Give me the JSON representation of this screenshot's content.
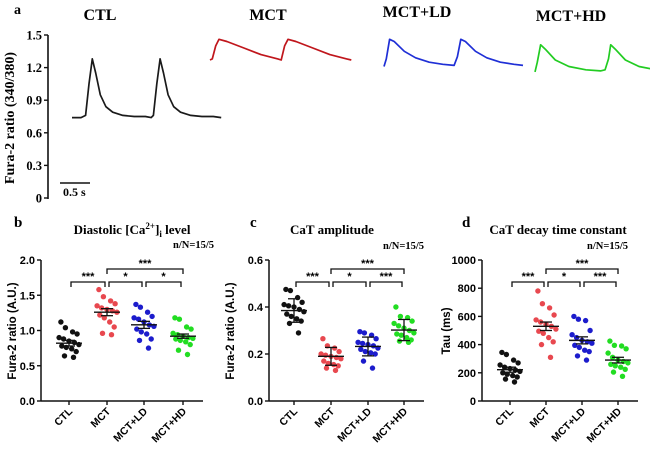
{
  "chart_data": [
    {
      "panel": "a",
      "type": "line",
      "title": "",
      "ylabel": "Fura-2 ratio (340/380)",
      "yticks": [
        "0",
        "0.3",
        "0.6",
        "0.9",
        "1.2",
        "1.5"
      ],
      "ylim": [
        0,
        1.5
      ],
      "scale_bar": {
        "label": "0.5 s",
        "seconds": 0.5
      },
      "series": [
        {
          "name": "CTL",
          "color": "#1a1a1a",
          "points": [
            [
              0,
              0.74
            ],
            [
              0.08,
              0.74
            ],
            [
              0.12,
              0.76
            ],
            [
              0.15,
              1.05
            ],
            [
              0.18,
              1.28
            ],
            [
              0.21,
              1.15
            ],
            [
              0.25,
              0.95
            ],
            [
              0.3,
              0.84
            ],
            [
              0.36,
              0.79
            ],
            [
              0.45,
              0.76
            ],
            [
              0.55,
              0.75
            ],
            [
              0.65,
              0.75
            ],
            [
              0.7,
              0.74
            ],
            [
              0.72,
              0.76
            ],
            [
              0.75,
              1.05
            ],
            [
              0.78,
              1.28
            ],
            [
              0.81,
              1.15
            ],
            [
              0.85,
              0.95
            ],
            [
              0.9,
              0.84
            ],
            [
              0.96,
              0.79
            ],
            [
              1.05,
              0.76
            ],
            [
              1.15,
              0.75
            ],
            [
              1.25,
              0.75
            ],
            [
              1.32,
              0.74
            ]
          ]
        },
        {
          "name": "MCT",
          "color": "#c0161c",
          "points": [
            [
              0,
              1.27
            ],
            [
              0.02,
              1.28
            ],
            [
              0.05,
              1.4
            ],
            [
              0.08,
              1.46
            ],
            [
              0.15,
              1.44
            ],
            [
              0.3,
              1.38
            ],
            [
              0.45,
              1.32
            ],
            [
              0.6,
              1.28
            ],
            [
              0.63,
              1.27
            ],
            [
              0.66,
              1.4
            ],
            [
              0.69,
              1.46
            ],
            [
              0.76,
              1.44
            ],
            [
              0.91,
              1.38
            ],
            [
              1.06,
              1.32
            ],
            [
              1.21,
              1.28
            ],
            [
              1.25,
              1.27
            ]
          ]
        },
        {
          "name": "MCT+LD",
          "color": "#1f2fd6",
          "points": [
            [
              0,
              1.21
            ],
            [
              0.02,
              1.28
            ],
            [
              0.05,
              1.46
            ],
            [
              0.09,
              1.44
            ],
            [
              0.18,
              1.35
            ],
            [
              0.28,
              1.29
            ],
            [
              0.4,
              1.25
            ],
            [
              0.52,
              1.23
            ],
            [
              0.62,
              1.22
            ],
            [
              0.65,
              1.3
            ],
            [
              0.68,
              1.46
            ],
            [
              0.72,
              1.44
            ],
            [
              0.81,
              1.35
            ],
            [
              0.91,
              1.29
            ],
            [
              1.03,
              1.25
            ],
            [
              1.15,
              1.23
            ],
            [
              1.23,
              1.22
            ]
          ]
        },
        {
          "name": "MCT+HD",
          "color": "#22cc22",
          "points": [
            [
              0,
              1.16
            ],
            [
              0.02,
              1.25
            ],
            [
              0.05,
              1.41
            ],
            [
              0.09,
              1.37
            ],
            [
              0.18,
              1.27
            ],
            [
              0.3,
              1.21
            ],
            [
              0.45,
              1.18
            ],
            [
              0.58,
              1.17
            ],
            [
              0.62,
              1.18
            ],
            [
              0.65,
              1.28
            ],
            [
              0.67,
              1.41
            ],
            [
              0.71,
              1.37
            ],
            [
              0.8,
              1.27
            ],
            [
              0.92,
              1.21
            ],
            [
              1.07,
              1.18
            ],
            [
              1.2,
              1.17
            ],
            [
              1.26,
              1.18
            ]
          ]
        }
      ]
    },
    {
      "panel": "b",
      "type": "scatter",
      "title": "Diastolic [Ca2+]i level",
      "title_main": "Diastolic [Ca",
      "title_sup": "2+",
      "title_mid": "]",
      "title_sub": "i",
      "title_end": " level",
      "n_label": "n/N=15/5",
      "ylabel": "Fura-2 ratio (A.U.)",
      "ylim": [
        0,
        2.0
      ],
      "yticks": [
        "0.0",
        "0.5",
        "1.0",
        "1.5",
        "2.0"
      ],
      "categories": [
        "CTL",
        "MCT",
        "MCT+LD",
        "MCT+HD"
      ],
      "error_type": "sem",
      "series": [
        {
          "name": "CTL",
          "color": "#111111",
          "mean": 0.82,
          "err": 0.04,
          "values": [
            1.12,
            1.04,
            0.98,
            0.95,
            0.9,
            0.88,
            0.85,
            0.83,
            0.8,
            0.78,
            0.76,
            0.74,
            0.7,
            0.64,
            0.62
          ]
        },
        {
          "name": "MCT",
          "color": "#e8484f",
          "mean": 1.26,
          "err": 0.05,
          "values": [
            1.58,
            1.48,
            1.42,
            1.38,
            1.35,
            1.32,
            1.3,
            1.28,
            1.26,
            1.22,
            1.18,
            1.12,
            1.05,
            0.96,
            0.94
          ]
        },
        {
          "name": "MCT+LD",
          "color": "#1c1ccc",
          "mean": 1.08,
          "err": 0.05,
          "values": [
            1.37,
            1.33,
            1.26,
            1.2,
            1.18,
            1.16,
            1.12,
            1.08,
            1.06,
            1.02,
            0.98,
            0.95,
            0.88,
            0.86,
            0.75
          ]
        },
        {
          "name": "MCT+HD",
          "color": "#22dd22",
          "mean": 0.92,
          "err": 0.03,
          "values": [
            1.18,
            1.16,
            1.05,
            1.02,
            0.96,
            0.94,
            0.92,
            0.9,
            0.89,
            0.88,
            0.86,
            0.84,
            0.8,
            0.72,
            0.66
          ]
        }
      ],
      "significance": [
        {
          "from": "CTL",
          "to": "MCT",
          "label": "***",
          "level": 1
        },
        {
          "from": "MCT",
          "to": "MCT+LD",
          "label": "*",
          "level": 1
        },
        {
          "from": "MCT+LD",
          "to": "MCT+HD",
          "label": "*",
          "level": 1
        },
        {
          "from": "MCT",
          "to": "MCT+HD",
          "label": "***",
          "level": 2
        }
      ]
    },
    {
      "panel": "c",
      "type": "scatter",
      "title": "CaT amplitude",
      "n_label": "n/N=15/5",
      "ylabel": "Fura-2 ratio (A.U.)",
      "ylim": [
        0,
        0.6
      ],
      "yticks": [
        "0.0",
        "0.2",
        "0.4",
        "0.6"
      ],
      "categories": [
        "CTL",
        "MCT",
        "MCT+LD",
        "MCT+HD"
      ],
      "error_type": "sd",
      "series": [
        {
          "name": "CTL",
          "color": "#111111",
          "mean": 0.385,
          "err": 0.05,
          "values": [
            0.475,
            0.47,
            0.44,
            0.42,
            0.41,
            0.405,
            0.4,
            0.39,
            0.38,
            0.37,
            0.36,
            0.35,
            0.34,
            0.33,
            0.29
          ]
        },
        {
          "name": "MCT",
          "color": "#e8484f",
          "mean": 0.19,
          "err": 0.038,
          "values": [
            0.265,
            0.235,
            0.225,
            0.21,
            0.2,
            0.195,
            0.19,
            0.185,
            0.18,
            0.17,
            0.16,
            0.155,
            0.15,
            0.14,
            0.13
          ]
        },
        {
          "name": "MCT+LD",
          "color": "#1c1ccc",
          "mean": 0.232,
          "err": 0.04,
          "values": [
            0.295,
            0.29,
            0.28,
            0.265,
            0.25,
            0.245,
            0.24,
            0.235,
            0.225,
            0.22,
            0.21,
            0.205,
            0.2,
            0.17,
            0.14
          ]
        },
        {
          "name": "MCT+HD",
          "color": "#22dd22",
          "mean": 0.302,
          "err": 0.045,
          "values": [
            0.4,
            0.36,
            0.355,
            0.34,
            0.33,
            0.32,
            0.31,
            0.3,
            0.29,
            0.285,
            0.28,
            0.27,
            0.26,
            0.255,
            0.25
          ]
        }
      ],
      "significance": [
        {
          "from": "CTL",
          "to": "MCT",
          "label": "***",
          "level": 1
        },
        {
          "from": "MCT",
          "to": "MCT+LD",
          "label": "*",
          "level": 1
        },
        {
          "from": "MCT+LD",
          "to": "MCT+HD",
          "label": "***",
          "level": 1
        },
        {
          "from": "MCT",
          "to": "MCT+HD",
          "label": "***",
          "level": 2
        }
      ]
    },
    {
      "panel": "d",
      "type": "scatter",
      "title": "CaT decay time constant",
      "n_label": "n/N=15/5",
      "ylabel": "Tau (ms)",
      "ylim": [
        0,
        1000
      ],
      "yticks": [
        "0",
        "200",
        "400",
        "600",
        "800",
        "1000"
      ],
      "categories": [
        "CTL",
        "MCT",
        "MCT+LD",
        "MCT+HD"
      ],
      "error_type": "sem",
      "series": [
        {
          "name": "CTL",
          "color": "#111111",
          "mean": 222,
          "err": 18,
          "values": [
            345,
            330,
            290,
            270,
            255,
            240,
            230,
            220,
            210,
            200,
            190,
            180,
            170,
            155,
            135
          ]
        },
        {
          "name": "MCT",
          "color": "#e8484f",
          "mean": 530,
          "err": 30,
          "values": [
            780,
            690,
            660,
            610,
            575,
            560,
            545,
            530,
            510,
            495,
            480,
            450,
            420,
            400,
            310
          ]
        },
        {
          "name": "MCT+LD",
          "color": "#1c1ccc",
          "mean": 430,
          "err": 25,
          "values": [
            600,
            580,
            570,
            500,
            470,
            450,
            430,
            420,
            410,
            395,
            380,
            360,
            350,
            320,
            290
          ]
        },
        {
          "name": "MCT+HD",
          "color": "#22dd22",
          "mean": 290,
          "err": 20,
          "values": [
            425,
            395,
            390,
            370,
            340,
            310,
            290,
            280,
            270,
            260,
            250,
            240,
            225,
            205,
            175
          ]
        }
      ],
      "significance": [
        {
          "from": "CTL",
          "to": "MCT",
          "label": "***",
          "level": 1
        },
        {
          "from": "MCT",
          "to": "MCT+LD",
          "label": "*",
          "level": 1
        },
        {
          "from": "MCT+LD",
          "to": "MCT+HD",
          "label": "***",
          "level": 1
        },
        {
          "from": "MCT",
          "to": "MCT+HD",
          "label": "***",
          "level": 2
        }
      ]
    }
  ],
  "panel_letters": {
    "a": "a",
    "b": "b",
    "c": "c",
    "d": "d"
  },
  "trace_titles": [
    "CTL",
    "MCT",
    "MCT+LD",
    "MCT+HD"
  ]
}
